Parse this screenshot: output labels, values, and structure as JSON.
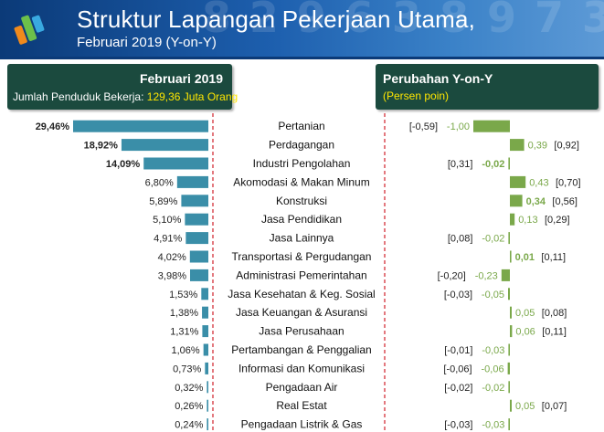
{
  "header": {
    "title": "Struktur Lapangan Pekerjaan Utama,",
    "subtitle": "Februari 2019 (Y-on-Y)"
  },
  "left_panel": {
    "title": "Februari 2019",
    "subtitle_label": "Jumlah Penduduk Bekerja:",
    "subtitle_value": "129,36 Juta Orang"
  },
  "right_panel": {
    "title": "Perubahan Y-on-Y",
    "subtitle": "(Persen poin)"
  },
  "colors": {
    "banner": "#1d5fae",
    "panel": "#1b4a3e",
    "share_bar": "#3a8ea8",
    "change_bar": "#7aa84a",
    "highlight_text": "#ffe600",
    "change_text": "#7aa84a",
    "divider": "#d0202a"
  },
  "chart_data": {
    "type": "bar",
    "title": "Struktur Lapangan Pekerjaan Utama,",
    "categories": [
      "Pertanian",
      "Perdagangan",
      "Industri Pengolahan",
      "Akomodasi & Makan Minum",
      "Konstruksi",
      "Jasa Pendidikan",
      "Jasa Lainnya",
      "Transportasi & Pergudangan",
      "Administrasi Pemerintahan",
      "Jasa Kesehatan & Keg. Sosial",
      "Jasa Keuangan & Asuransi",
      "Jasa Perusahaan",
      "Pertambangan & Penggalian",
      "Informasi dan Komunikasi",
      "Pengadaan Air",
      "Real Estat",
      "Pengadaan Listrik & Gas"
    ],
    "series": [
      {
        "name": "Februari 2019",
        "values": [
          29.46,
          18.92,
          14.09,
          6.8,
          5.89,
          5.1,
          4.91,
          4.02,
          3.98,
          1.53,
          1.38,
          1.31,
          1.06,
          0.73,
          0.32,
          0.26,
          0.24
        ],
        "labels": [
          "29,46%",
          "18,92%",
          "14,09%",
          "6,80%",
          "5,89%",
          "5,10%",
          "4,91%",
          "4,02%",
          "3,98%",
          "1,53%",
          "1,38%",
          "1,31%",
          "1,06%",
          "0,73%",
          "0,32%",
          "0,26%",
          "0,24%"
        ],
        "bold": [
          true,
          true,
          true,
          false,
          false,
          false,
          false,
          false,
          false,
          false,
          false,
          false,
          false,
          false,
          false,
          false,
          false
        ]
      },
      {
        "name": "Perubahan Y-on-Y",
        "values": [
          -1.0,
          0.39,
          -0.02,
          0.43,
          0.34,
          0.13,
          -0.02,
          0.01,
          -0.23,
          -0.05,
          0.05,
          0.06,
          -0.03,
          -0.06,
          -0.02,
          0.05,
          -0.03
        ],
        "labels": [
          "-1,00",
          "0,39",
          "-0,02",
          "0,43",
          "0,34",
          "0,13",
          "-0,02",
          "0,01",
          "-0,23",
          "-0,05",
          "0,05",
          "0,06",
          "-0,03",
          "-0,06",
          "-0,02",
          "0,05",
          "-0,03"
        ],
        "brackets": [
          "[-0,59]",
          "[0,92]",
          "[0,31]",
          "[0,70]",
          "[0,56]",
          "[0,29]",
          "[0,08]",
          "[0,11]",
          "[-0,20]",
          "[-0,03]",
          "[0,08]",
          "[0,11]",
          "[-0,01]",
          "[-0,06]",
          "[-0,02]",
          "[0,07]",
          "[-0,03]"
        ],
        "bold": [
          false,
          false,
          true,
          false,
          true,
          false,
          false,
          true,
          false,
          false,
          false,
          false,
          false,
          false,
          false,
          false,
          false
        ]
      }
    ],
    "xlabel": "",
    "ylabel": ""
  }
}
